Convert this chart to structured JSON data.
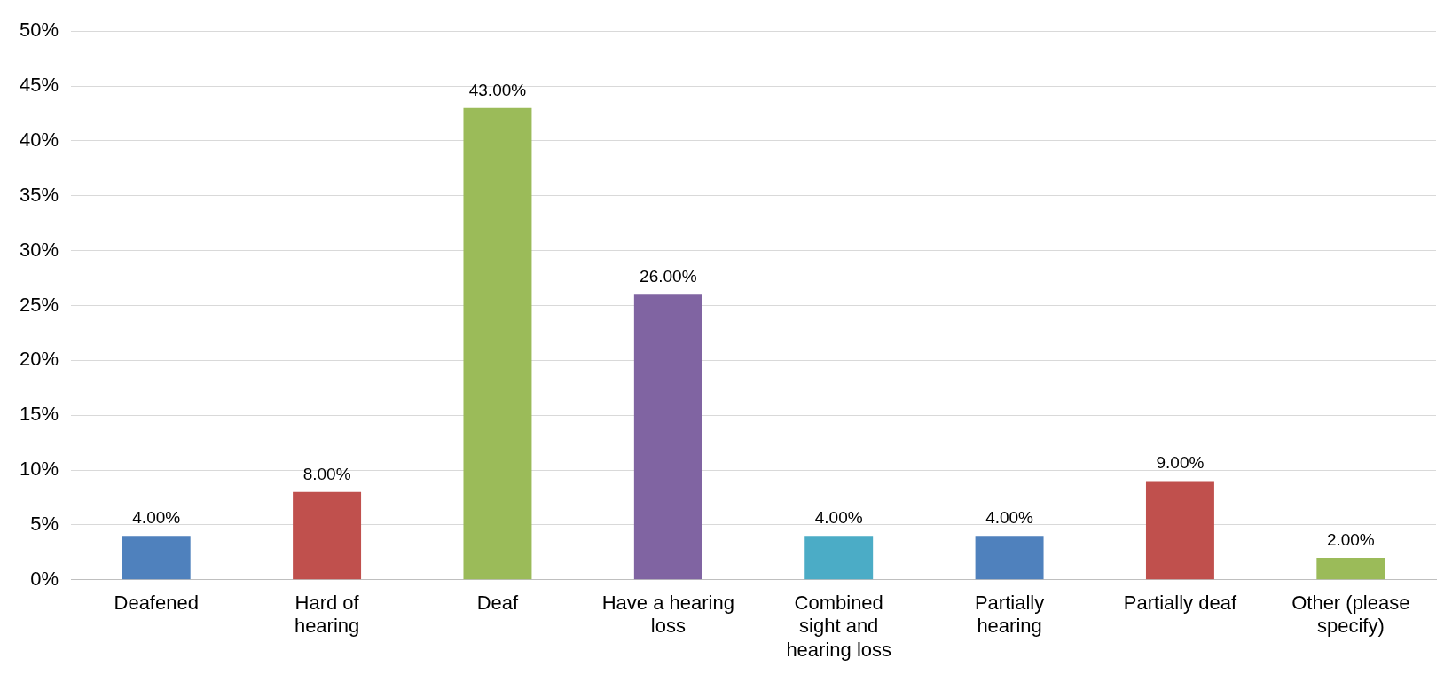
{
  "chart_data": {
    "type": "bar",
    "categories": [
      "Deafened",
      "Hard of hearing",
      "Deaf",
      "Have a hearing loss",
      "Combined sight and hearing loss",
      "Partially hearing",
      "Partially deaf",
      "Other (please specify)"
    ],
    "values": [
      4,
      8,
      43,
      26,
      4,
      4,
      9,
      2
    ],
    "colors": [
      "#4f81bd",
      "#c0504d",
      "#9bbb59",
      "#8064a2",
      "#4bacc6",
      "#4f81bd",
      "#c0504d",
      "#9bbb59"
    ],
    "value_labels": [
      "4.00%",
      "8.00%",
      "43.00%",
      "26.00%",
      "4.00%",
      "4.00%",
      "9.00%",
      "2.00%"
    ],
    "ylim": [
      0,
      50
    ],
    "yticks": [
      {
        "value": 0,
        "label": "0%"
      },
      {
        "value": 5,
        "label": "5%"
      },
      {
        "value": 10,
        "label": "10%"
      },
      {
        "value": 15,
        "label": "15%"
      },
      {
        "value": 20,
        "label": "20%"
      },
      {
        "value": 25,
        "label": "25%"
      },
      {
        "value": 30,
        "label": "30%"
      },
      {
        "value": 35,
        "label": "35%"
      },
      {
        "value": 40,
        "label": "40%"
      },
      {
        "value": 45,
        "label": "45%"
      },
      {
        "value": 50,
        "label": "50%"
      }
    ],
    "grid": "y",
    "legend": false
  }
}
